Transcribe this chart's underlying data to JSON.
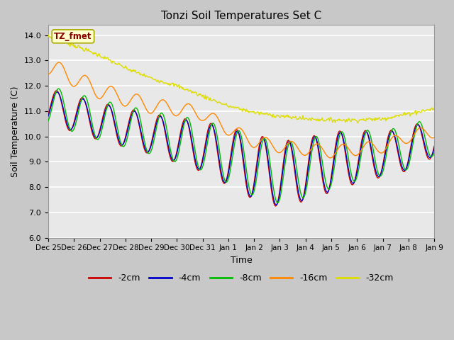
{
  "title": "Tonzi Soil Temperatures Set C",
  "xlabel": "Time",
  "ylabel": "Soil Temperature (C)",
  "ylim": [
    6.0,
    14.4
  ],
  "yticks": [
    6.0,
    7.0,
    8.0,
    9.0,
    10.0,
    11.0,
    12.0,
    13.0,
    14.0
  ],
  "fig_bg_color": "#c8c8c8",
  "plot_bg_color": "#e8e8e8",
  "colors": {
    "-2cm": "#cc0000",
    "-4cm": "#0000cc",
    "-8cm": "#00bb00",
    "-16cm": "#ff8800",
    "-32cm": "#dddd00"
  },
  "legend_label": "TZ_fmet",
  "legend_box_color": "#ffffcc",
  "legend_text_color": "#880000",
  "tick_labels": [
    "Dec 25",
    "Dec 26",
    "Dec 27",
    "Dec 28",
    "Dec 29",
    "Dec 30",
    "Dec 31",
    "Jan 1",
    "Jan 2",
    "Jan 3",
    "Jan 4",
    "Jan 5",
    "Jan 6",
    "Jan 7",
    "Jan 8",
    "Jan 9"
  ],
  "n_points": 480,
  "total_days": 15.0
}
